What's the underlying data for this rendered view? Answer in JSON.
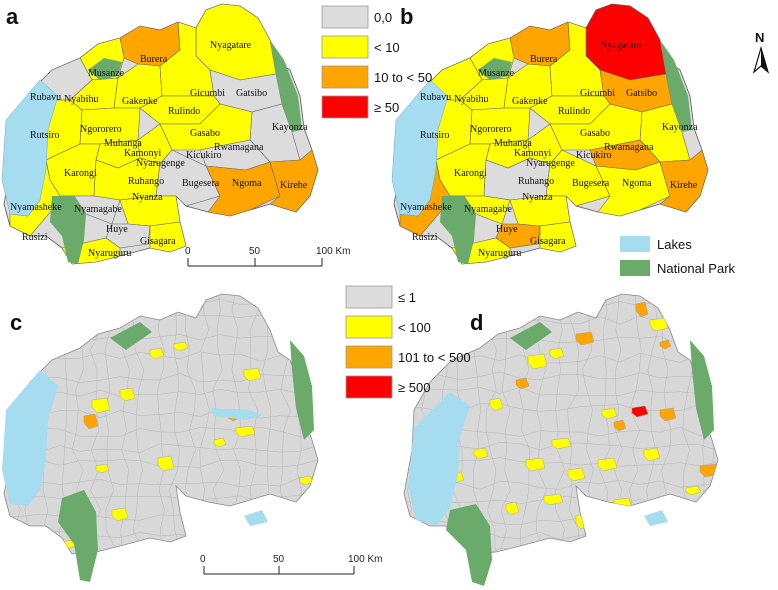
{
  "panels": {
    "a": {
      "label": "a"
    },
    "b": {
      "label": "b"
    },
    "c": {
      "label": "c"
    },
    "d": {
      "label": "d"
    }
  },
  "legend_district": {
    "items": [
      {
        "label": "0,0",
        "color": "#dcdcdc"
      },
      {
        "label": "< 10",
        "color": "#ffff00"
      },
      {
        "label": "10  to < 50",
        "color": "#ffa500"
      },
      {
        "label": "≥  50",
        "color": "#ff0000"
      }
    ]
  },
  "legend_sector": {
    "items": [
      {
        "label": "≤ 1",
        "color": "#dcdcdc"
      },
      {
        "label": "< 100",
        "color": "#ffff00"
      },
      {
        "label": "101 to < 500",
        "color": "#ffa500"
      },
      {
        "label": "≥  500",
        "color": "#ff0000"
      }
    ]
  },
  "legend_features": {
    "items": [
      {
        "label": "Lakes",
        "color": "#a6dcef"
      },
      {
        "label": "National Park",
        "color": "#6aaa6a"
      }
    ]
  },
  "scale_top": {
    "ticks": [
      "0",
      "50",
      "100 Km"
    ]
  },
  "scale_bottom": {
    "ticks": [
      "0",
      "50",
      "100 Km"
    ]
  },
  "north_arrow": {
    "label": "N",
    "icon": "north-arrow-icon"
  },
  "districts": {
    "nyagatare": "Nyagatare",
    "burera": "Burera",
    "musanze": "Musanze",
    "rubavu": "Rubavu",
    "nyabihu": "Nyabihu",
    "gakenke": "Gakenke",
    "gicumbi": "Gicumbi",
    "gatsibo": "Gatsibo",
    "rulindo": "Rulindo",
    "kayonza": "Kayonza",
    "rutsiro": "Rutsiro",
    "ngororero": "Ngororero",
    "muhanga": "Muhanga",
    "kamonyi": "Kamonyi",
    "nyarugenge": "Nyarugenge",
    "gasabo": "Gasabo",
    "rwamagana": "Rwamagana",
    "kicukiro": "Kicukiro",
    "karongi": "Karongi",
    "ruhango": "Ruhango",
    "bugesera": "Bugesera",
    "ngoma": "Ngoma",
    "kirehe": "Kirehe",
    "nyamasheke": "Nyamasheke",
    "nyamagabe": "Nyamagabe",
    "nyanza": "Nyanza",
    "rusizi": "Rusizi",
    "huye": "Huye",
    "gisagara": "Gisagara",
    "nyaruguru": "Nyaruguru"
  },
  "panel_a_classes": {
    "nyagatare": "lt10",
    "burera": "c10to50",
    "musanze": "lt10",
    "rubavu": "zero",
    "nyabihu": "lt10",
    "gakenke": "lt10",
    "gicumbi": "lt10",
    "gatsibo": "zero",
    "rulindo": "lt10",
    "kayonza": "zero",
    "rutsiro": "lt10",
    "ngororero": "lt10",
    "muhanga": "lt10",
    "kamonyi": "lt10",
    "gasabo": "lt10",
    "rwamagana": "zero",
    "karongi": "lt10",
    "ruhango": "lt10",
    "bugesera": "zero",
    "ngoma": "c10to50",
    "kirehe": "c10to50",
    "nyamasheke": "lt10",
    "nyamagabe": "zero",
    "nyanza": "lt10",
    "rusizi": "c10to50",
    "huye": "zero",
    "gisagara": "lt10",
    "nyaruguru": "lt10"
  },
  "panel_b_classes": {
    "nyagatare": "ge50",
    "burera": "c10to50",
    "musanze": "lt10",
    "rubavu": "lt10",
    "nyabihu": "lt10",
    "gakenke": "lt10",
    "gicumbi": "lt10",
    "gatsibo": "c10to50",
    "rulindo": "lt10",
    "kayonza": "lt10",
    "rutsiro": "lt10",
    "ngororero": "lt10",
    "muhanga": "lt10",
    "kamonyi": "lt10",
    "gasabo": "lt10",
    "rwamagana": "c10to50",
    "karongi": "lt10",
    "ruhango": "zero",
    "bugesera": "lt10",
    "ngoma": "lt10",
    "kirehe": "c10to50",
    "nyamasheke": "c10to50",
    "nyamagabe": "lt10",
    "nyanza": "lt10",
    "rusizi": "c10to50",
    "huye": "c10to50",
    "gisagara": "lt10",
    "nyaruguru": "lt10"
  }
}
